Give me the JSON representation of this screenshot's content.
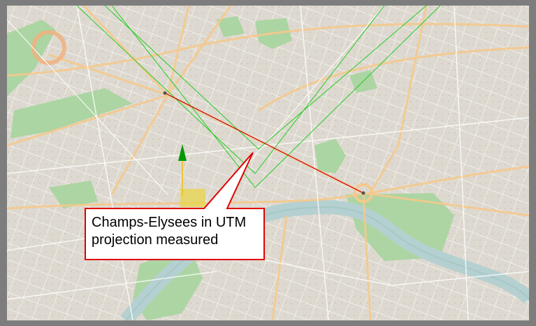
{
  "map": {
    "callout": {
      "line1": "Champs-Elysees in UTM",
      "line2": "projection measured"
    },
    "colors": {
      "background": "#ddd9d0",
      "frame": "#7d7d7d",
      "parks": "#a9d5a0",
      "river": "#b5d0d0",
      "main_roads": "#f5c98c",
      "measure_line": "#cc0000",
      "utm_grid_lines": "#22cc22",
      "reference_lines": "#ffffff",
      "callout_border": "#e00000",
      "north_arrow": "#009900",
      "selection_box": "#e8d44a"
    },
    "icons": [
      "north-arrow-icon"
    ]
  }
}
